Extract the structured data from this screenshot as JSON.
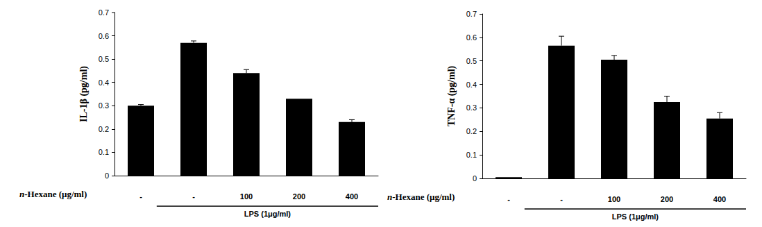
{
  "chart_data": [
    {
      "type": "bar",
      "y_label": "IL-1β (pg/ml)",
      "x_label": "n-Hexane (μg/ml)",
      "categories": [
        "-",
        "-",
        "100",
        "200",
        "400"
      ],
      "values": [
        0.3,
        0.57,
        0.44,
        0.33,
        0.23
      ],
      "errors": [
        0.005,
        0.008,
        0.015,
        0,
        0.01
      ],
      "color": "#000000",
      "ylim": [
        0,
        0.7
      ],
      "yticks": [
        0,
        0.1,
        0.2,
        0.3,
        0.4,
        0.5,
        0.6,
        0.7
      ],
      "grid": false,
      "annotations": [
        "LPS (1μg/ml)"
      ]
    },
    {
      "type": "bar",
      "y_label": "TNF-α (pg/ml)",
      "x_label": "n-Hexane (μg/ml)",
      "categories": [
        "-",
        "-",
        "100",
        "200",
        "400"
      ],
      "values": [
        0.005,
        0.565,
        0.505,
        0.325,
        0.255
      ],
      "errors": [
        0,
        0.04,
        0.018,
        0.025,
        0.025
      ],
      "color": "#000000",
      "ylim": [
        0,
        0.7
      ],
      "yticks": [
        0,
        0.1,
        0.2,
        0.3,
        0.4,
        0.5,
        0.6,
        0.7
      ],
      "grid": false,
      "annotations": [
        "LPS (1μg/ml)"
      ]
    }
  ]
}
